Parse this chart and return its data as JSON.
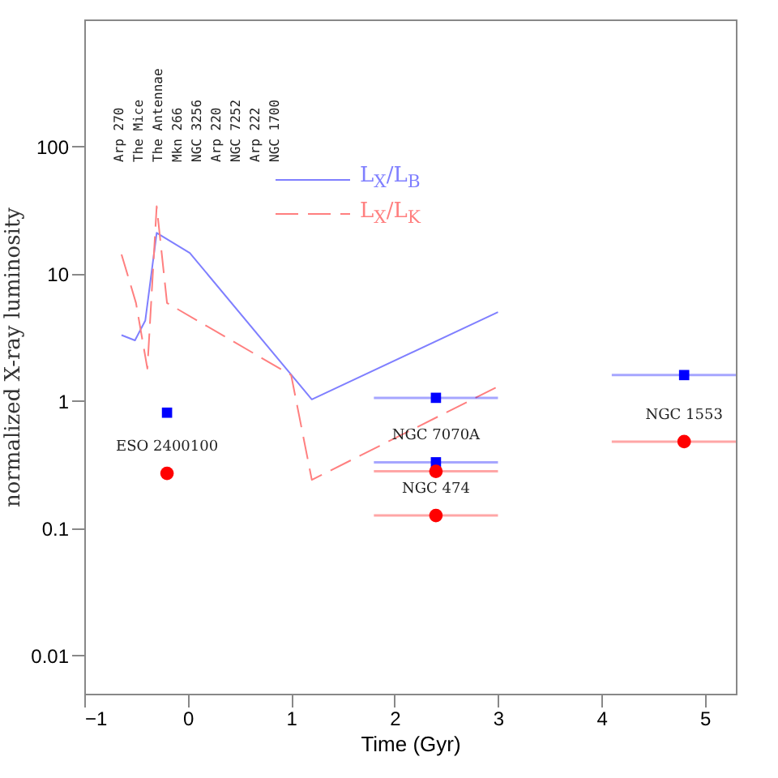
{
  "chart_data": {
    "type": "line",
    "xlabel": "Time (Gyr)",
    "ylabel": "normalized X-ray luminosity",
    "xlim": [
      -1,
      5.3
    ],
    "xticks": [
      -1,
      0,
      1,
      2,
      3,
      4,
      5
    ],
    "ylim": [
      0.005,
      1000
    ],
    "yticks": [
      0.01,
      0.1,
      1,
      10,
      100
    ],
    "log": "y",
    "legend": "top",
    "grid": false,
    "annotations": [
      "Arp 270",
      "The Mice",
      "The Antennae",
      "Mkn 266",
      "NGC 3256",
      "Arp 220",
      "NGC 7252",
      "Arp 222",
      "NGC 1700",
      {
        "text": "ESO 2400100",
        "x": -0.2,
        "y": 0.27
      },
      {
        "text": "NGC 7070A",
        "x": 2.4,
        "y": 0.33
      },
      {
        "text": "NGC 474",
        "x": 2.4,
        "y": 0.126
      },
      {
        "text": "NGC 1553",
        "x": 4.8,
        "y": 0.48
      }
    ],
    "series": [
      {
        "name": "L$_{X}$/L$_{B}$",
        "type": "line",
        "color": "#7f7fff",
        "line_style": "solid",
        "x": [
          -0.64,
          -0.51,
          -0.41,
          -0.3,
          0.02,
          1.2,
          3.0
        ],
        "values": [
          3.3,
          3.0,
          4.3,
          21,
          14.6,
          1.03,
          5.0
        ]
      },
      {
        "name": "L$_{X}$/L$_{K}$",
        "type": "line",
        "color": "#ff7f7f",
        "line_style": "dashed",
        "x": [
          -0.64,
          -0.5,
          -0.39,
          -0.3,
          -0.2,
          1.0,
          1.2,
          3.0
        ],
        "values": [
          14.2,
          5.9,
          1.8,
          34,
          5.9,
          1.6,
          0.24,
          1.3
        ]
      },
      {
        "type": "scatter",
        "marker": "square",
        "color": "#0000ff",
        "x": [
          -0.2,
          2.4,
          2.4,
          4.8
        ],
        "values": [
          0.81,
          1.06,
          0.33,
          1.6
        ],
        "xerrors": [
          null,
          [
            1.8,
            3.0
          ],
          [
            1.8,
            3.0
          ],
          [
            4.1,
            5.3
          ]
        ]
      },
      {
        "type": "scatter",
        "marker": "circle",
        "color": "#ff0000",
        "x": [
          -0.2,
          2.4,
          2.4,
          4.8
        ],
        "values": [
          0.27,
          0.28,
          0.126,
          0.48
        ],
        "xerrors": [
          null,
          [
            1.8,
            3.0
          ],
          [
            1.8,
            3.0
          ],
          [
            4.1,
            5.3
          ]
        ]
      }
    ]
  }
}
